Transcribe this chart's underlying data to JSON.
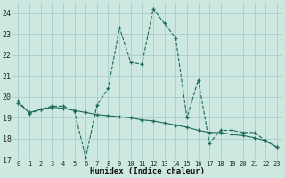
{
  "xlabel": "Humidex (Indice chaleur)",
  "bg_color": "#cce8e0",
  "grid_color": "#aacccc",
  "line_color": "#1a6b5a",
  "xlim": [
    -0.5,
    23.5
  ],
  "ylim": [
    17,
    24.5
  ],
  "xticks": [
    0,
    1,
    2,
    3,
    4,
    5,
    6,
    7,
    8,
    9,
    10,
    11,
    12,
    13,
    14,
    15,
    16,
    17,
    18,
    19,
    20,
    21,
    22,
    23
  ],
  "yticks": [
    17,
    18,
    19,
    20,
    21,
    22,
    23,
    24
  ],
  "line1_x": [
    0,
    1,
    2,
    3,
    4,
    5,
    6,
    7,
    8,
    9,
    10,
    11,
    12,
    13,
    14,
    15,
    16,
    17,
    18,
    19,
    20,
    21,
    22,
    23
  ],
  "line1_y": [
    19.8,
    19.2,
    19.4,
    19.55,
    19.55,
    19.3,
    17.1,
    19.6,
    20.4,
    23.3,
    21.65,
    21.55,
    24.2,
    23.5,
    22.8,
    19.0,
    20.8,
    17.8,
    18.4,
    18.4,
    18.3,
    18.3,
    17.9,
    17.6
  ],
  "line2_x": [
    0,
    1,
    2,
    3,
    4,
    5,
    6,
    7,
    8,
    9,
    10,
    11,
    12,
    13,
    14,
    15,
    16,
    17,
    18,
    19,
    20,
    21,
    22,
    23
  ],
  "line2_y": [
    19.7,
    19.25,
    19.4,
    19.5,
    19.45,
    19.35,
    19.25,
    19.15,
    19.1,
    19.05,
    19.0,
    18.9,
    18.85,
    18.75,
    18.65,
    18.55,
    18.4,
    18.3,
    18.3,
    18.2,
    18.15,
    18.05,
    17.9,
    17.6
  ]
}
